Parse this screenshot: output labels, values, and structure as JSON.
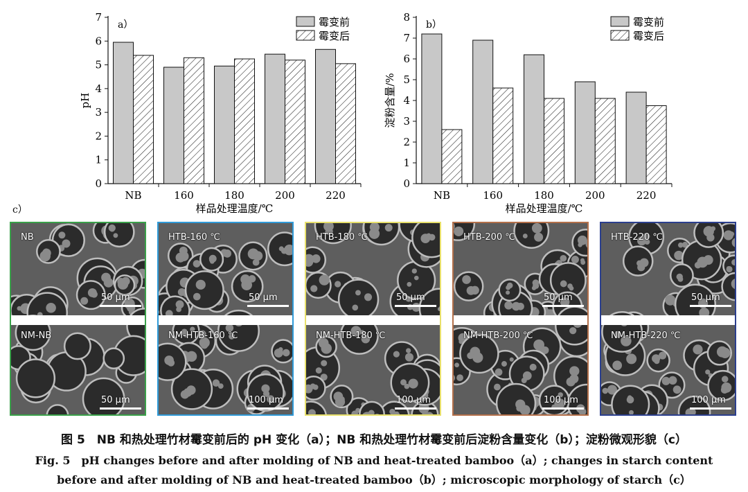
{
  "chart_data": [
    {
      "type": "bar",
      "panel": "a）",
      "categories": [
        "NB",
        "160",
        "180",
        "200",
        "220"
      ],
      "series": [
        {
          "name": "霉变前",
          "values": [
            5.95,
            4.9,
            4.95,
            5.45,
            5.65
          ]
        },
        {
          "name": "霉变后",
          "values": [
            5.4,
            5.3,
            5.25,
            5.2,
            5.05
          ]
        }
      ],
      "xlabel": "样品处理温度/℃",
      "ylabel": "pH",
      "ylim": [
        0,
        7
      ],
      "yticks": [
        "0",
        "1",
        "2",
        "3",
        "4",
        "5",
        "6",
        "7"
      ],
      "grid": false,
      "legend": "top-right"
    },
    {
      "type": "bar",
      "panel": "b）",
      "categories": [
        "NB",
        "160",
        "180",
        "200",
        "220"
      ],
      "series": [
        {
          "name": "霉变前",
          "values": [
            7.2,
            6.9,
            6.2,
            4.9,
            4.4
          ]
        },
        {
          "name": "霉变后",
          "values": [
            2.6,
            4.6,
            4.1,
            4.1,
            3.75
          ]
        }
      ],
      "xlabel": "样品处理温度/℃",
      "ylabel": "淀粉含量/%",
      "ylim": [
        0,
        8
      ],
      "yticks": [
        "0",
        "1",
        "2",
        "3",
        "4",
        "5",
        "6",
        "7",
        "8"
      ],
      "grid": false,
      "legend": "top-right"
    }
  ],
  "colors": {
    "before_fill": "#c8c8c8",
    "border_green": "#3aa14a",
    "border_blue": "#2f9ad8",
    "border_yellow": "#e8e06a",
    "border_brown": "#b4704a",
    "border_navy": "#2b3f8e"
  },
  "micrographs": {
    "panel_label": "c）",
    "tiles": [
      {
        "top_label": "NB",
        "bottom_label": "NM-NB",
        "top_scale": "50 μm",
        "bottom_scale": "50 μm",
        "border": "#3aa14a"
      },
      {
        "top_label": "HTB-160 ℃",
        "bottom_label": "NM-HTB-160 ℃",
        "top_scale": "50 μm",
        "bottom_scale": "100 μm",
        "border": "#2f9ad8"
      },
      {
        "top_label": "HTB-180 ℃",
        "bottom_label": "NM-HTB-180 ℃",
        "top_scale": "50 μm",
        "bottom_scale": "100 μm",
        "border": "#e8e06a"
      },
      {
        "top_label": "HTB-200 ℃",
        "bottom_label": "NM-HTB-200 ℃",
        "top_scale": "50 μm",
        "bottom_scale": "100 μm",
        "border": "#b4704a"
      },
      {
        "top_label": "HTB-220 ℃",
        "bottom_label": "NM-HTB-220 ℃",
        "top_scale": "50 μm",
        "bottom_scale": "100 μm",
        "border": "#2b3f8e"
      }
    ]
  },
  "caption": {
    "zh": "图 5　NB 和热处理竹材霉变前后的 pH 变化（a）；NB 和热处理竹材霉变前后淀粉含量变化（b）；淀粉微观形貌（c）",
    "en_line1": "Fig. 5　pH changes before and after molding of NB and heat-treated bamboo（a）; changes in starch content",
    "en_line2": "before and after molding of NB and heat-treated bamboo（b）; microscopic morphology of starch（c）"
  }
}
